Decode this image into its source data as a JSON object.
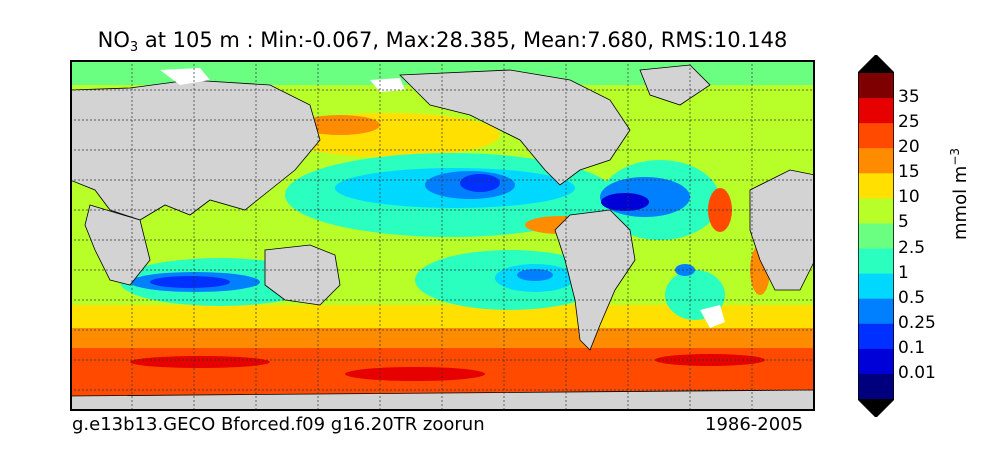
{
  "title": {
    "species": "NO",
    "subscript": "3",
    "text": " at 105 m : Min:-0.067, Max:28.385, Mean:7.680, RMS:10.148"
  },
  "footer": {
    "case": "g.e13b13.GECO Bforced.f09 g16.20TR zoorun",
    "period": "1986-2005"
  },
  "colorbar": {
    "title": "mmol m",
    "title_exponent": "−3",
    "labels": [
      "35",
      "25",
      "20",
      "15",
      "10",
      "5",
      "2.5",
      "1",
      "0.5",
      "0.25",
      "0.1",
      "0.01"
    ],
    "colors": [
      "#7f0000",
      "#e60000",
      "#ff4a00",
      "#ff8c00",
      "#ffe000",
      "#b8ff2a",
      "#6aff80",
      "#2affc0",
      "#00d8ff",
      "#0080ff",
      "#0030ff",
      "#0000d8",
      "#00007f"
    ]
  },
  "map_colors": {
    "land": "#d3d3d3",
    "sea_ice": "#ffffff",
    "coast": "#000000",
    "grid": "#333333"
  }
}
